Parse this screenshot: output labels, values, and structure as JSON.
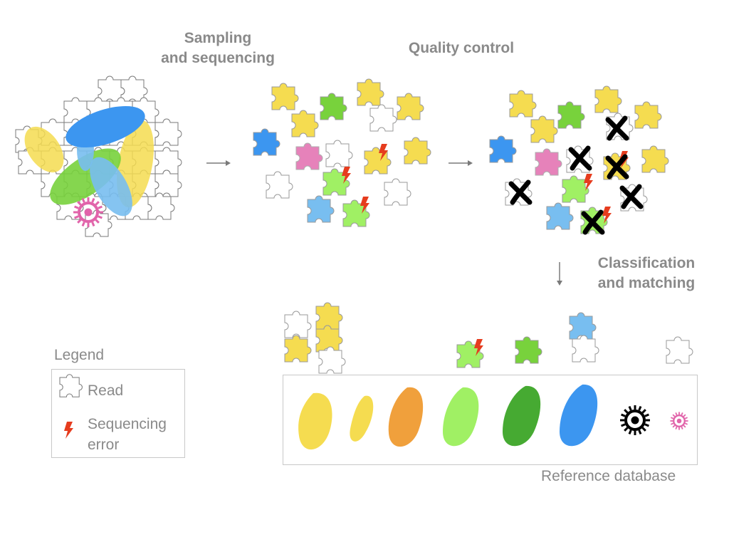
{
  "steps": {
    "sampling": "Sampling\nand sequencing",
    "quality_control": "Quality control",
    "classification": "Classification\nand matching"
  },
  "legend": {
    "title": "Legend",
    "read_label": "Read",
    "error_label": "Sequencing\nerror"
  },
  "database": {
    "label": "Reference database"
  },
  "colors": {
    "yellow": "#f5dc50",
    "blue": "#3c96f0",
    "light_blue": "#78bef0",
    "green": "#78d23c",
    "light_green": "#a0f064",
    "dark_green": "#46aa32",
    "orange": "#f0a03c",
    "pink": "#e164aa",
    "error_red": "#e63c1e",
    "text_gray": "#8a8a8a"
  },
  "icons": [
    "puzzle-piece-icon",
    "lightning-bolt-icon",
    "cross-mark-icon",
    "bacterium-icon",
    "virus-icon",
    "arrow-icon"
  ]
}
